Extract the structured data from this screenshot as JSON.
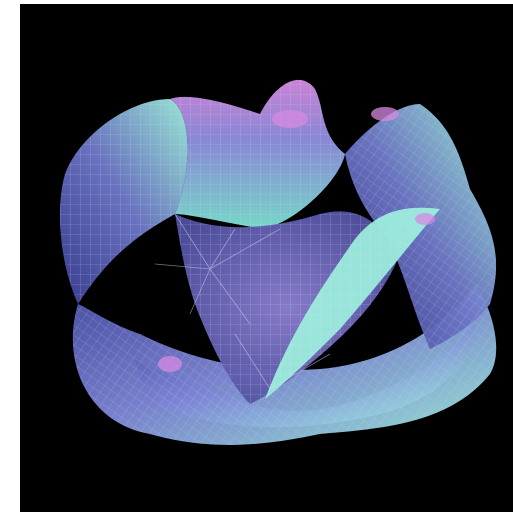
{
  "render": {
    "subject": "surface-render",
    "colors": {
      "background": "#000000",
      "border": "#ffffff",
      "surface_dark": "#4a4fa8",
      "surface_mid": "#7d86d6",
      "surface_light": "#9ff3df",
      "surface_pink": "#d58ae1",
      "wire": "#d8d3f3"
    }
  }
}
